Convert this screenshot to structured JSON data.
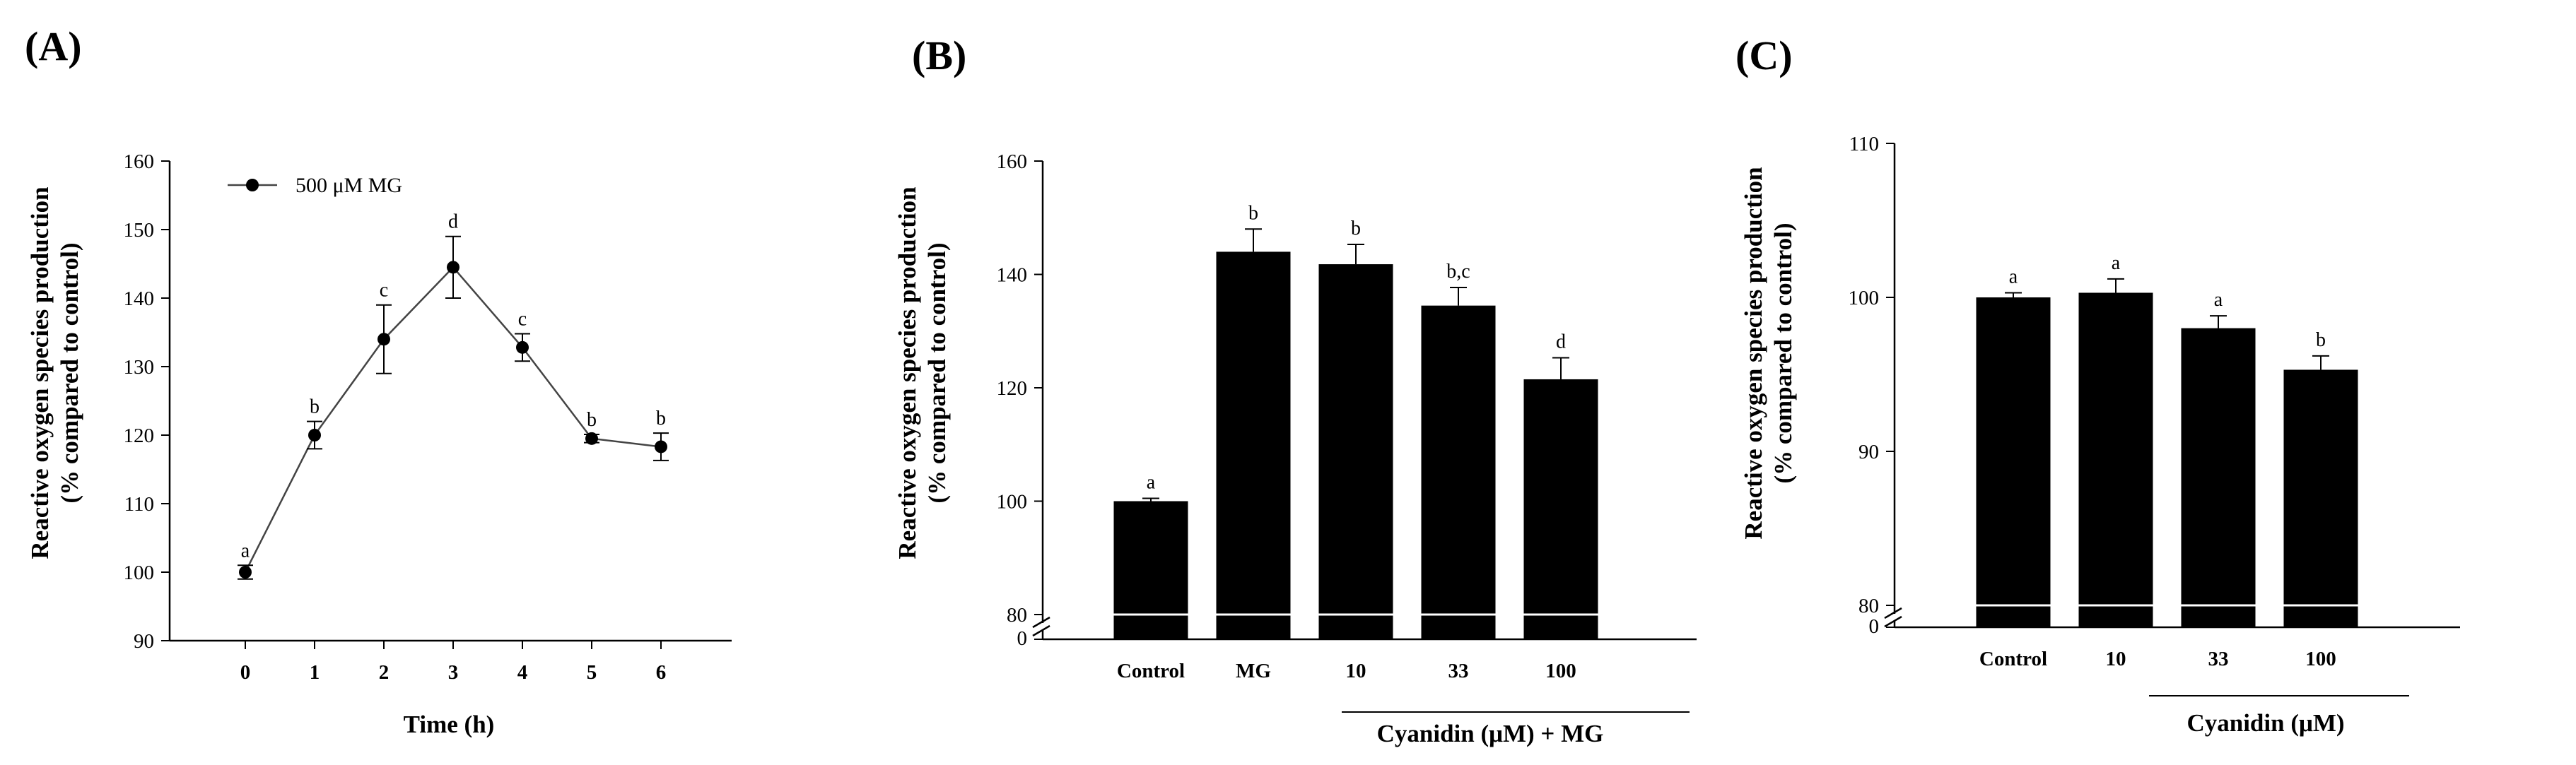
{
  "chart_data": [
    {
      "panel": "(A)",
      "type": "line",
      "title": "",
      "xlabel": "Time (h)",
      "ylabel": [
        "Reactive oxygen species production",
        "(% compared to control)"
      ],
      "ylim": [
        90,
        160
      ],
      "yticks": [
        90,
        100,
        110,
        120,
        130,
        140,
        150,
        160
      ],
      "categories": [
        "0",
        "1",
        "2",
        "3",
        "4",
        "5",
        "6"
      ],
      "series": [
        {
          "name": "500 μM MG",
          "values": [
            100,
            120,
            134,
            144.5,
            132.8,
            119.5,
            118.3
          ],
          "errors": [
            1.0,
            2.0,
            5.0,
            4.5,
            2.0,
            0.6,
            2.0
          ],
          "labels": [
            "a",
            "b",
            "c",
            "d",
            "c",
            "b",
            "b"
          ]
        }
      ],
      "legend": "top-left"
    },
    {
      "panel": "(B)",
      "type": "bar",
      "title": "",
      "xlabel": "Cyanidin (μM) + MG",
      "ylabel": [
        "Reactive oxygen species production",
        "(% compared to control)"
      ],
      "ylim": [
        80,
        160
      ],
      "yticks": [
        80,
        100,
        120,
        140,
        160
      ],
      "axis_break_label": "0",
      "categories": [
        "Control",
        "MG",
        "10",
        "33",
        "100"
      ],
      "values": [
        100,
        144,
        141.8,
        134.5,
        121.5
      ],
      "errors": [
        0.5,
        4.0,
        3.5,
        3.2,
        3.8
      ],
      "labels": [
        "a",
        "b",
        "b",
        "b,c",
        "d"
      ]
    },
    {
      "panel": "(C)",
      "type": "bar",
      "title": "",
      "xlabel": "Cyanidin (μM)",
      "ylabel": [
        "Reactive oxygen species production",
        "(% compared to control)"
      ],
      "ylim": [
        80,
        110
      ],
      "yticks": [
        80,
        90,
        100,
        110
      ],
      "axis_break_label": "0",
      "categories": [
        "Control",
        "10",
        "33",
        "100"
      ],
      "values": [
        100,
        100.3,
        98,
        95.3
      ],
      "errors": [
        0.3,
        0.9,
        0.8,
        0.9
      ],
      "labels": [
        "a",
        "a",
        "a",
        "b"
      ]
    }
  ]
}
